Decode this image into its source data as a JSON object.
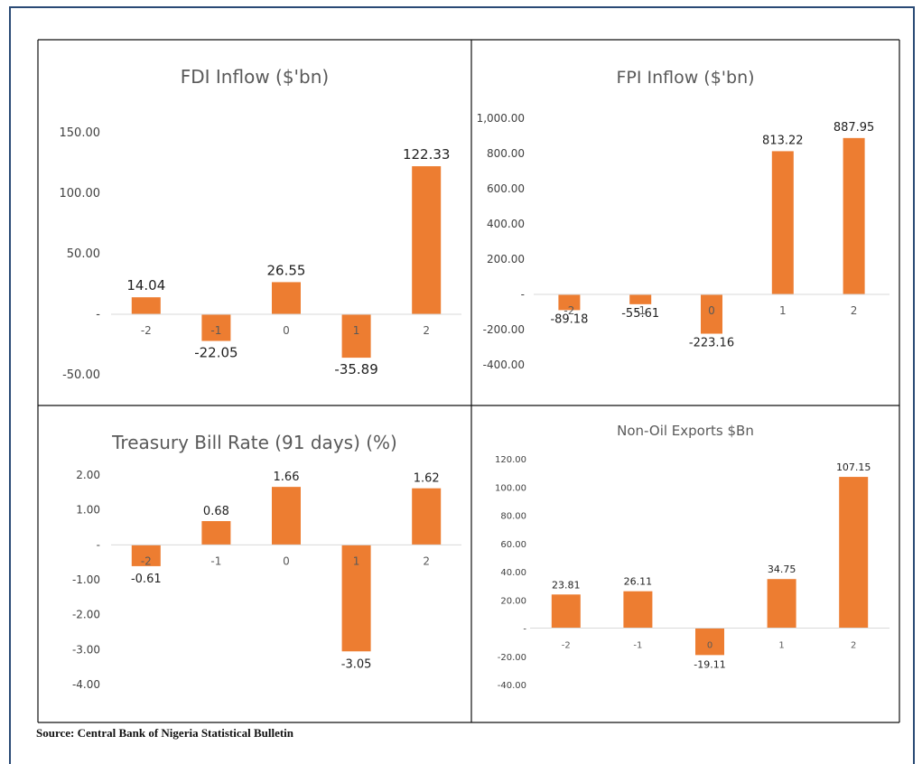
{
  "colors": {
    "bar": "#ED7D31",
    "frame": "#2a4a75",
    "gridline": "#d9d9d9"
  },
  "source": "Source: Central Bank of Nigeria Statistical Bulletin",
  "chart_data": [
    {
      "type": "bar",
      "title": "FDI Inflow ($'bn)",
      "categories": [
        "-2",
        "-1",
        "0",
        "1",
        "2"
      ],
      "values": [
        14.04,
        -22.05,
        26.55,
        -35.89,
        122.33
      ],
      "value_labels": [
        "14.04",
        "-22.05",
        "26.55",
        "-35.89",
        "122.33"
      ],
      "yticks": [
        -50,
        0,
        50,
        100,
        150
      ],
      "ytick_labels": [
        "-50.00",
        "-",
        "50.00",
        "100.00",
        "150.00"
      ],
      "ylim": [
        -50,
        150
      ],
      "grid": false
    },
    {
      "type": "bar",
      "title": "FPI Inflow ($'bn)",
      "categories": [
        "-2",
        "-1",
        "0",
        "1",
        "2"
      ],
      "values": [
        -89.18,
        -55.61,
        -223.16,
        813.22,
        887.95
      ],
      "value_labels": [
        "-89.18",
        "-55.61",
        "-223.16",
        "813.22",
        "887.95"
      ],
      "yticks": [
        -400,
        -200,
        0,
        200,
        400,
        600,
        800,
        1000
      ],
      "ytick_labels": [
        "-400.00",
        "-200.00",
        "-",
        "200.00",
        "400.00",
        "600.00",
        "800.00",
        "1,000.00"
      ],
      "ylim": [
        -400,
        1000
      ],
      "grid": false
    },
    {
      "type": "bar",
      "title": "Treasury Bill Rate (91 days) (%)",
      "categories": [
        "-2",
        "-1",
        "0",
        "1",
        "2"
      ],
      "values": [
        -0.61,
        0.68,
        1.66,
        -3.05,
        1.62
      ],
      "value_labels": [
        "-0.61",
        "0.68",
        "1.66",
        "-3.05",
        "1.62"
      ],
      "yticks": [
        -4,
        -3,
        -2,
        -1,
        0,
        1,
        2
      ],
      "ytick_labels": [
        "-4.00",
        "-3.00",
        "-2.00",
        "-1.00",
        "-",
        "1.00",
        "2.00"
      ],
      "ylim": [
        -4,
        2
      ],
      "grid": false
    },
    {
      "type": "bar",
      "title": "Non-Oil Exports $Bn",
      "categories": [
        "-2",
        "-1",
        "0",
        "1",
        "2"
      ],
      "values": [
        23.81,
        26.11,
        -19.11,
        34.75,
        107.15
      ],
      "value_labels": [
        "23.81",
        "26.11",
        "-19.11",
        "34.75",
        "107.15"
      ],
      "yticks": [
        -40,
        -20,
        0,
        20,
        40,
        60,
        80,
        100,
        120
      ],
      "ytick_labels": [
        "-40.00",
        "-20.00",
        "-",
        "20.00",
        "40.00",
        "60.00",
        "80.00",
        "100.00",
        "120.00"
      ],
      "ylim": [
        -40,
        120
      ],
      "grid": false
    }
  ]
}
